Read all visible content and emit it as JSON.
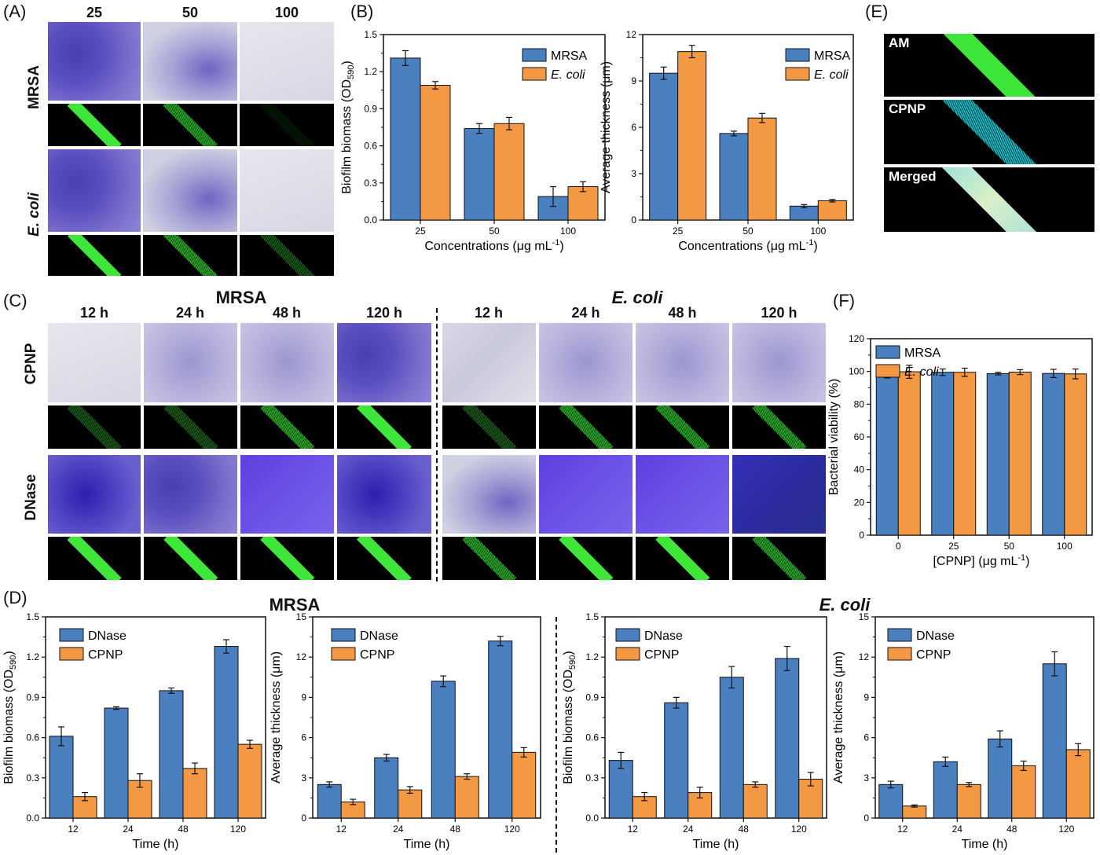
{
  "panels": {
    "A": "(A)",
    "B": "(B)",
    "C": "(C)",
    "D": "(D)",
    "E": "(E)",
    "F": "(F)"
  },
  "panelA": {
    "col_headers": [
      "25",
      "50",
      "100"
    ],
    "row_labels": [
      "MRSA",
      "E. coli"
    ]
  },
  "panelC": {
    "group_titles": [
      "MRSA",
      "E. coli"
    ],
    "time_headers": [
      "12 h",
      "24 h",
      "48 h",
      "120 h"
    ],
    "row_labels": [
      "CPNP",
      "DNase"
    ]
  },
  "panelD": {
    "group_titles": [
      "MRSA",
      "E. coli"
    ]
  },
  "panelE": {
    "labels": [
      "AM",
      "CPNP",
      "Merged"
    ]
  },
  "colors": {
    "blue": "#4a7fc0",
    "orange": "#f39843"
  },
  "chart_data": [
    {
      "id": "B1",
      "type": "bar",
      "categories": [
        "25",
        "50",
        "100"
      ],
      "series": [
        {
          "name": "MRSA",
          "values": [
            1.31,
            0.74,
            0.19
          ],
          "errors": [
            0.06,
            0.04,
            0.08
          ]
        },
        {
          "name": "E. coli",
          "values": [
            1.09,
            0.78,
            0.27
          ],
          "errors": [
            0.03,
            0.05,
            0.04
          ]
        }
      ],
      "xlabel": "Concentrations (μg mL⁻¹)",
      "ylabel": "Biofilm biomass (OD590)",
      "ylim": [
        0,
        1.5
      ],
      "yticks": [
        "0.0",
        "0.3",
        "0.6",
        "0.9",
        "1.2",
        "1.5"
      ],
      "legend": "top-right"
    },
    {
      "id": "B2",
      "type": "bar",
      "categories": [
        "25",
        "50",
        "100"
      ],
      "series": [
        {
          "name": "MRSA",
          "values": [
            9.5,
            5.6,
            0.9
          ],
          "errors": [
            0.4,
            0.15,
            0.1
          ]
        },
        {
          "name": "E. coli",
          "values": [
            10.9,
            6.6,
            1.25
          ],
          "errors": [
            0.4,
            0.3,
            0.08
          ]
        }
      ],
      "xlabel": "Concentrations (μg mL⁻¹)",
      "ylabel": "Average thickness (μm)",
      "ylim": [
        0,
        12
      ],
      "yticks": [
        "0",
        "3",
        "6",
        "9",
        "12"
      ],
      "legend": "top-right"
    },
    {
      "id": "F",
      "type": "bar",
      "categories": [
        "0",
        "25",
        "50",
        "100"
      ],
      "series": [
        {
          "name": "MRSA",
          "values": [
            98.5,
            99.5,
            98.7,
            98.8
          ],
          "errors": [
            2.5,
            2.0,
            0.8,
            2.5
          ]
        },
        {
          "name": "E. coli",
          "values": [
            99.8,
            99.5,
            99.6,
            98.5
          ],
          "errors": [
            4.0,
            2.5,
            1.5,
            3.0
          ]
        }
      ],
      "xlabel": "[CPNP] (μg mL⁻¹)",
      "ylabel": "Bacterial viability (%)",
      "ylim": [
        0,
        120
      ],
      "yticks": [
        "0",
        "20",
        "40",
        "60",
        "80",
        "100",
        "120"
      ],
      "legend": "top-left"
    },
    {
      "id": "D1",
      "type": "bar",
      "categories": [
        "12",
        "24",
        "48",
        "120"
      ],
      "series": [
        {
          "name": "DNase",
          "values": [
            0.61,
            0.82,
            0.95,
            1.28
          ],
          "errors": [
            0.07,
            0.01,
            0.02,
            0.05
          ]
        },
        {
          "name": "CPNP",
          "values": [
            0.16,
            0.28,
            0.37,
            0.55
          ],
          "errors": [
            0.03,
            0.05,
            0.04,
            0.03
          ]
        }
      ],
      "xlabel": "Time (h)",
      "ylabel": "Biofilm biomass (OD590)",
      "ylim": [
        0,
        1.5
      ],
      "yticks": [
        "0.0",
        "0.3",
        "0.6",
        "0.9",
        "1.2",
        "1.5"
      ],
      "legend": "top-left"
    },
    {
      "id": "D2",
      "type": "bar",
      "categories": [
        "12",
        "24",
        "48",
        "120"
      ],
      "series": [
        {
          "name": "DNase",
          "values": [
            2.5,
            4.5,
            10.2,
            13.2
          ],
          "errors": [
            0.2,
            0.25,
            0.4,
            0.35
          ]
        },
        {
          "name": "CPNP",
          "values": [
            1.2,
            2.1,
            3.1,
            4.9
          ],
          "errors": [
            0.2,
            0.25,
            0.2,
            0.35
          ]
        }
      ],
      "xlabel": "Time (h)",
      "ylabel": "Average thickness (μm)",
      "ylim": [
        0,
        15
      ],
      "yticks": [
        "0",
        "3",
        "6",
        "9",
        "12",
        "15"
      ],
      "legend": "top-left"
    },
    {
      "id": "D3",
      "type": "bar",
      "categories": [
        "12",
        "24",
        "48",
        "120"
      ],
      "series": [
        {
          "name": "DNase",
          "values": [
            0.43,
            0.86,
            1.05,
            1.19
          ],
          "errors": [
            0.06,
            0.04,
            0.08,
            0.09
          ]
        },
        {
          "name": "CPNP",
          "values": [
            0.16,
            0.19,
            0.25,
            0.29
          ],
          "errors": [
            0.03,
            0.04,
            0.02,
            0.05
          ]
        }
      ],
      "xlabel": "Time (h)",
      "ylabel": "Biofilm biomass (OD590)",
      "ylim": [
        0,
        1.5
      ],
      "yticks": [
        "0.0",
        "0.3",
        "0.6",
        "0.9",
        "1.2",
        "1.5"
      ],
      "legend": "top-left"
    },
    {
      "id": "D4",
      "type": "bar",
      "categories": [
        "12",
        "24",
        "48",
        "120"
      ],
      "series": [
        {
          "name": "DNase",
          "values": [
            2.5,
            4.2,
            5.9,
            11.5
          ],
          "errors": [
            0.25,
            0.35,
            0.6,
            0.9
          ]
        },
        {
          "name": "CPNP",
          "values": [
            0.9,
            2.5,
            3.9,
            5.1
          ],
          "errors": [
            0.08,
            0.15,
            0.35,
            0.45
          ]
        }
      ],
      "xlabel": "Time (h)",
      "ylabel": "Average thickness (μm)",
      "ylim": [
        0,
        15
      ],
      "yticks": [
        "0",
        "3",
        "6",
        "9",
        "12",
        "15"
      ],
      "legend": "top-left"
    }
  ]
}
